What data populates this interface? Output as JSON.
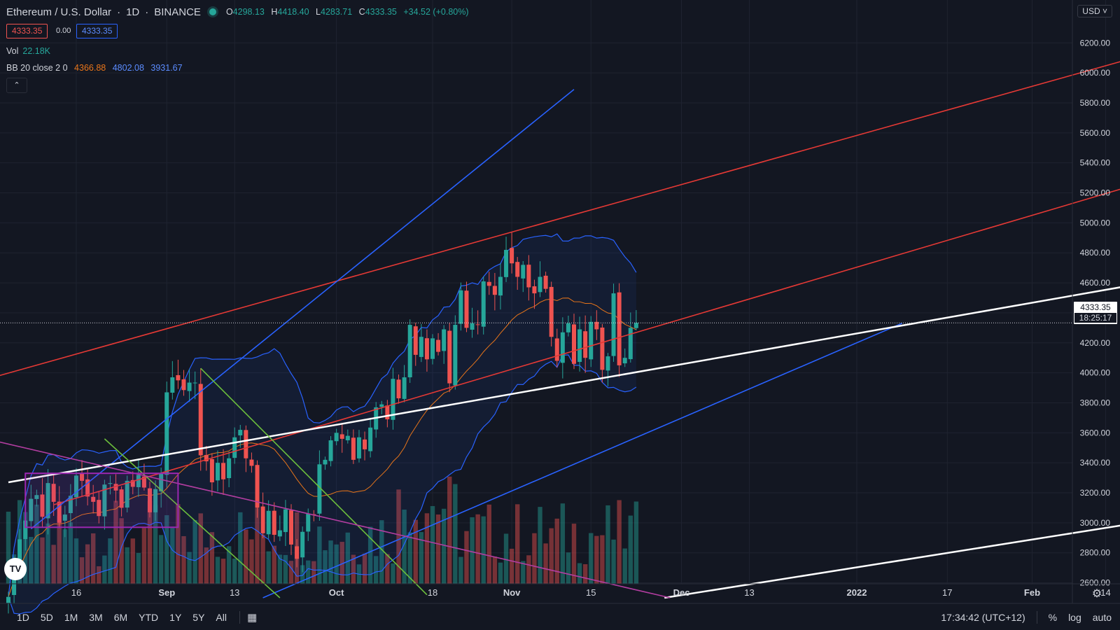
{
  "header": {
    "symbol": "Ethereum / U.S. Dollar",
    "interval": "1D",
    "exchange": "BINANCE",
    "ohlc": {
      "o_label": "O",
      "o": "4298.13",
      "h_label": "H",
      "h": "4418.40",
      "l_label": "L",
      "l": "4283.71",
      "c_label": "C",
      "c": "4333.35",
      "change": "+34.52 (+0.80%)"
    },
    "sell_price": "4333.35",
    "spread": "0.00",
    "buy_price": "4333.35"
  },
  "legend": {
    "vol_label": "Vol",
    "vol_value": "22.18K",
    "bb_label": "BB 20 close 2 0",
    "bb_basis": "4366.88",
    "bb_upper": "4802.08",
    "bb_lower": "3931.67"
  },
  "collapse_icon": "chevron-up-icon",
  "currency_button": "USD",
  "last_price": "4333.35",
  "countdown": "18:25:17",
  "bottom_bar": {
    "ranges": [
      "1D",
      "5D",
      "1M",
      "3M",
      "6M",
      "YTD",
      "1Y",
      "5Y",
      "All"
    ],
    "time": "17:34:42 (UTC+12)",
    "percent": "%",
    "log": "log",
    "auto": "auto"
  },
  "colors": {
    "background": "#131722",
    "up": "#26a69a",
    "down": "#ef5350",
    "basis": "#e8751a",
    "band": "#2962ff",
    "trend_red": "#e53935",
    "trend_blue": "#2962ff",
    "trend_white": "#ffffff",
    "trend_green": "#6cbf3c",
    "trend_magenta": "#b23da0",
    "rect": "#9c27b0"
  },
  "chart_data": {
    "type": "candlestick",
    "title": "Ethereum / U.S. Dollar 1D BINANCE",
    "ylim": [
      2500,
      6300
    ],
    "y_ticks": [
      2600,
      2800,
      3000,
      3200,
      3400,
      3600,
      3800,
      4000,
      4200,
      4400,
      4600,
      4800,
      5000,
      5200,
      5400,
      5600,
      5800,
      6000,
      6200
    ],
    "y_tick_labels": [
      "2600.00",
      "2800.00",
      "3000.00",
      "3200.00",
      "3400.00",
      "3600.00",
      "3800.00",
      "4000.00",
      "4200.00",
      "4400.00",
      "4600.00",
      "4800.00",
      "5000.00",
      "5200.00",
      "5400.00",
      "5600.00",
      "5800.00",
      "6000.00",
      "6200.00"
    ],
    "x_labels": [
      {
        "date": "2021-08-16",
        "label": "16"
      },
      {
        "date": "2021-09-01",
        "label": "Sep",
        "bold": true
      },
      {
        "date": "2021-09-13",
        "label": "13"
      },
      {
        "date": "2021-10-01",
        "label": "Oct",
        "bold": true
      },
      {
        "date": "2021-10-18",
        "label": "18"
      },
      {
        "date": "2021-11-01",
        "label": "Nov",
        "bold": true
      },
      {
        "date": "2021-11-15",
        "label": "15"
      },
      {
        "date": "2021-12-01",
        "label": "Dec",
        "bold": true
      },
      {
        "date": "2021-12-13",
        "label": "13"
      },
      {
        "date": "2022-01-01",
        "label": "2022",
        "bold": true
      },
      {
        "date": "2022-01-17",
        "label": "17"
      },
      {
        "date": "2022-02-01",
        "label": "Feb",
        "bold": true
      },
      {
        "date": "2022-02-14",
        "label": "14"
      }
    ],
    "start_date": "2021-08-04",
    "end_date": "2022-02-18",
    "closes": [
      2506,
      2725,
      2890,
      3015,
      3160,
      3185,
      3040,
      3265,
      3140,
      3000,
      3055,
      3180,
      3315,
      3280,
      3175,
      3140,
      3045,
      3255,
      3265,
      3215,
      3100,
      3280,
      3240,
      3320,
      3235,
      3070,
      3225,
      3330,
      3870,
      3970,
      3950,
      3885,
      3935,
      3935,
      3450,
      3410,
      3270,
      3400,
      3290,
      3430,
      3570,
      3620,
      3430,
      3380,
      3100,
      2930,
      3080,
      2920,
      2950,
      3090,
      2855,
      2760,
      2940,
      3060,
      3050,
      3390,
      3420,
      3550,
      3600,
      3560,
      3580,
      3420,
      3570,
      3490,
      3635,
      3770,
      3790,
      3690,
      3960,
      3830,
      3970,
      4320,
      4120,
      4240,
      4090,
      4230,
      4140,
      4290,
      3930,
      4320,
      4550,
      4300,
      4330,
      4320,
      4610,
      4580,
      4520,
      4640,
      4820,
      4730,
      4640,
      4720,
      4570,
      4530,
      4640,
      4560,
      4240,
      4080,
      4270,
      4330,
      4060,
      4290,
      4100,
      4340,
      4290,
      4020,
      4110,
      4530,
      4050,
      4100,
      4300,
      4333.35
    ],
    "series": [
      {
        "name": "BB 20 close 2 0 (basis)",
        "last": 4366.88
      },
      {
        "name": "BB upper",
        "last": 4802.08
      },
      {
        "name": "BB lower",
        "last": 3931.67
      },
      {
        "name": "Vol",
        "last": "22.18K"
      }
    ],
    "last_price": 4333.35,
    "drawings": [
      {
        "type": "trend_line",
        "color": "red",
        "from": [
          "2021-07-20",
          3840
        ],
        "to": [
          "2022-02-18",
          6090
        ]
      },
      {
        "type": "trend_line",
        "color": "red",
        "from": [
          "2021-08-12",
          3120
        ],
        "to": [
          "2022-02-18",
          5240
        ]
      },
      {
        "type": "trend_line",
        "color": "blue",
        "from": [
          "2021-08-08",
          2960
        ],
        "to": [
          "2021-11-12",
          5890
        ]
      },
      {
        "type": "trend_line",
        "color": "blue",
        "from": [
          "2021-09-18",
          2500
        ],
        "to": [
          "2022-01-09",
          4330
        ]
      },
      {
        "type": "trend_line",
        "color": "white",
        "from": [
          "2021-08-04",
          3270
        ],
        "to": [
          "2022-02-18",
          4580
        ]
      },
      {
        "type": "trend_line",
        "color": "white",
        "from": [
          "2021-11-28",
          2500
        ],
        "to": [
          "2022-02-18",
          2990
        ]
      },
      {
        "type": "trend_line",
        "color": "green",
        "from": [
          "2021-09-07",
          4030
        ],
        "to": [
          "2021-10-17",
          2520
        ]
      },
      {
        "type": "trend_line",
        "color": "green",
        "from": [
          "2021-08-21",
          3560
        ],
        "to": [
          "2021-09-21",
          2500
        ]
      },
      {
        "type": "trend_line",
        "color": "magenta",
        "from": [
          "2021-07-31",
          3560
        ],
        "to": [
          "2021-11-29",
          2500
        ]
      },
      {
        "type": "rectangle",
        "color": "purple",
        "from": [
          "2021-08-07",
          3330
        ],
        "to": [
          "2021-09-03",
          2970
        ]
      }
    ]
  }
}
